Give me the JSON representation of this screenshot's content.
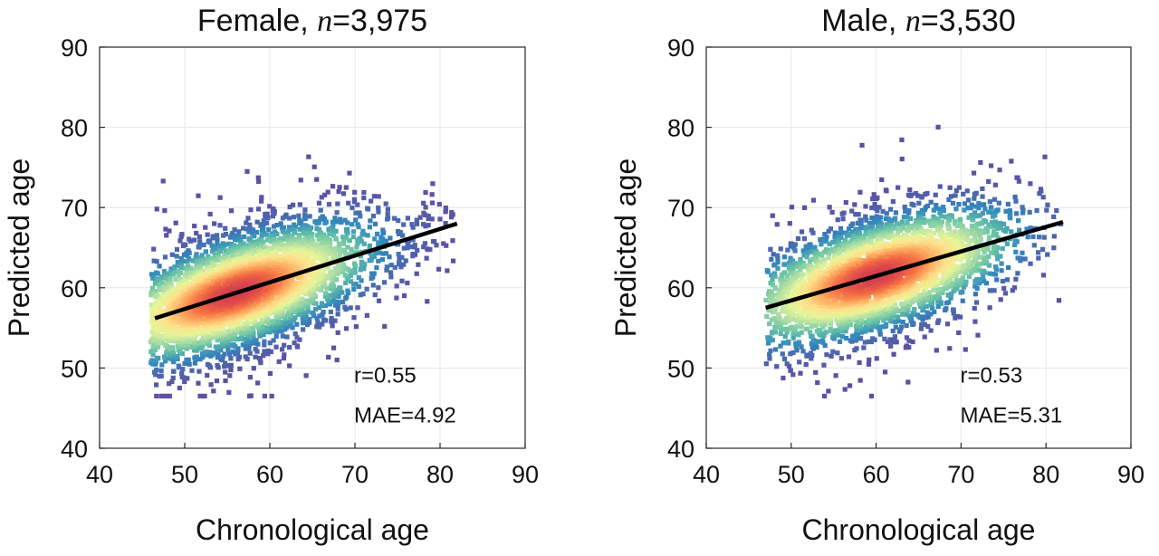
{
  "chart_data": [
    {
      "type": "scatter",
      "title_prefix": "Female, ",
      "title_var": "n",
      "title_suffix": "=3,975",
      "xlabel": "Chronological age",
      "ylabel": "Predicted age",
      "xlim": [
        40,
        90
      ],
      "ylim": [
        40,
        90
      ],
      "xticks": [
        "40",
        "50",
        "60",
        "70",
        "80",
        "90"
      ],
      "yticks": [
        "40",
        "50",
        "60",
        "70",
        "80",
        "90"
      ],
      "grid": true,
      "n_points": 3975,
      "x_range": [
        46,
        82
      ],
      "fit_line": [
        [
          46.5,
          56.2
        ],
        [
          82,
          68
        ]
      ],
      "density_center": [
        56,
        59.5
      ],
      "r_label": "r=0.55",
      "mae_label": "MAE=4.92",
      "colormap": [
        "#5e4fa2",
        "#3288bd",
        "#66c2a5",
        "#abdda4",
        "#e6f598",
        "#fee08b",
        "#fdae61",
        "#f46d43",
        "#d53e4f"
      ],
      "line_color": "#000000"
    },
    {
      "type": "scatter",
      "title_prefix": "Male, ",
      "title_var": "n",
      "title_suffix": "=3,530",
      "xlabel": "Chronological age",
      "ylabel": "Predicted age",
      "xlim": [
        40,
        90
      ],
      "ylim": [
        40,
        90
      ],
      "xticks": [
        "40",
        "50",
        "60",
        "70",
        "80",
        "90"
      ],
      "yticks": [
        "40",
        "50",
        "60",
        "70",
        "80",
        "90"
      ],
      "grid": true,
      "n_points": 3530,
      "x_range": [
        47,
        82
      ],
      "fit_line": [
        [
          47,
          57.5
        ],
        [
          82,
          68.2
        ]
      ],
      "density_center": [
        60,
        61
      ],
      "r_label": "r=0.53",
      "mae_label": "MAE=5.31",
      "colormap": [
        "#5e4fa2",
        "#3288bd",
        "#66c2a5",
        "#abdda4",
        "#e6f598",
        "#fee08b",
        "#fdae61",
        "#f46d43",
        "#d53e4f"
      ],
      "line_color": "#000000"
    }
  ]
}
